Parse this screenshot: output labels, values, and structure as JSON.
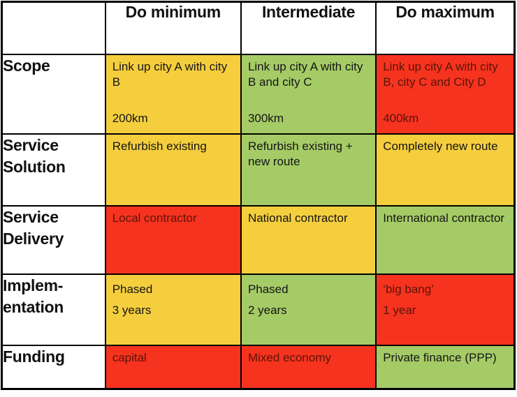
{
  "colors": {
    "yellow": "#F5CE3E",
    "green": "#A5CB66",
    "red": "#F5331F",
    "text_black": "#151515",
    "text_dark_red": "#5C1408"
  },
  "table": {
    "columns": {
      "corner": "",
      "col1": "Do minimum",
      "col2": "Intermediate",
      "col3": "Do maximum"
    },
    "rows": [
      {
        "label": "Scope",
        "cells": [
          {
            "text": "Link up city A with city B",
            "footer": "200km",
            "bg": "yellow",
            "fg": "text_black"
          },
          {
            "text": "Link up city A with city B and city C",
            "footer": "300km",
            "bg": "green",
            "fg": "text_black"
          },
          {
            "text": "Link up city A with city B, city C and City D",
            "footer": "400km",
            "bg": "red",
            "fg": "text_dark_red"
          }
        ]
      },
      {
        "label": "Service\nSolution",
        "cells": [
          {
            "text": "Refurbish existing",
            "bg": "yellow",
            "fg": "text_black"
          },
          {
            "text": "Refurbish existing + new route",
            "bg": "green",
            "fg": "text_black"
          },
          {
            "text": "Completely new route",
            "bg": "yellow",
            "fg": "text_black"
          }
        ]
      },
      {
        "label": "Service\nDelivery",
        "cells": [
          {
            "text": "Local contractor",
            "bg": "red",
            "fg": "text_dark_red"
          },
          {
            "text": "National contractor",
            "bg": "yellow",
            "fg": "text_black"
          },
          {
            "text": "International contractor",
            "bg": "green",
            "fg": "text_black"
          }
        ]
      },
      {
        "label": "Implem-\nentation",
        "cells": [
          {
            "text": "Phased\n3 years",
            "bg": "yellow",
            "fg": "text_black"
          },
          {
            "text": "Phased\n2 years",
            "bg": "green",
            "fg": "text_black"
          },
          {
            "text": "‘big bang’\n1 year",
            "bg": "red",
            "fg": "text_dark_red"
          }
        ]
      },
      {
        "label": "Funding",
        "cells": [
          {
            "text": "capital",
            "bg": "red",
            "fg": "text_dark_red"
          },
          {
            "text": "Mixed economy",
            "bg": "red",
            "fg": "text_dark_red"
          },
          {
            "text": "Private finance (PPP)",
            "bg": "green",
            "fg": "text_black"
          }
        ]
      }
    ]
  }
}
